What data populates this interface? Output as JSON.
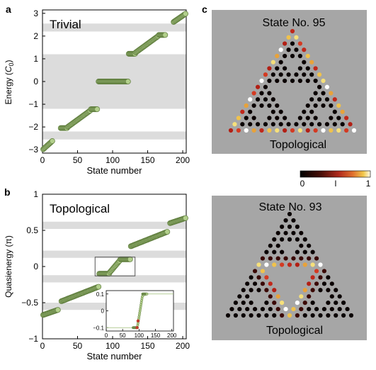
{
  "panel_labels": [
    "a",
    "b",
    "c"
  ],
  "colors": {
    "marker_fill": "#b3cf8c",
    "marker_stroke": "#5f7d3e",
    "band_gray": "#dcdcdc",
    "panel_c_bg": "#a6a6a6",
    "inset_line": "#9fbf78",
    "inset_highlight": "#c23b2a"
  },
  "chart_data": [
    {
      "id": "a",
      "type": "scatter",
      "annotation": "Trivial",
      "xlabel": "State number",
      "ylabel": "Energy (C0)",
      "xlim": [
        0,
        205
      ],
      "ylim": [
        -3.15,
        3.15
      ],
      "xticks": [
        0,
        50,
        100,
        150,
        200
      ],
      "yticks": [
        -3,
        -2,
        -1,
        0,
        1,
        2,
        3
      ],
      "gray_bands": [
        [
          2.2,
          2.55
        ],
        [
          -1.2,
          1.2
        ],
        [
          -2.55,
          -2.2
        ]
      ],
      "segments": [
        {
          "x": [
            1,
            14
          ],
          "y": [
            -2.98,
            -2.62
          ]
        },
        {
          "x": [
            26,
            35
          ],
          "y": [
            -2.05,
            -2.05
          ]
        },
        {
          "x": [
            36,
            68
          ],
          "y": [
            -2.0,
            -1.28
          ]
        },
        {
          "x": [
            69,
            78
          ],
          "y": [
            -1.22,
            -1.22
          ]
        },
        {
          "x": [
            80,
            122
          ],
          "y": [
            0.0,
            0.0
          ]
        },
        {
          "x": [
            123,
            132
          ],
          "y": [
            1.22,
            1.22
          ]
        },
        {
          "x": [
            133,
            165
          ],
          "y": [
            1.28,
            2.0
          ]
        },
        {
          "x": [
            166,
            175
          ],
          "y": [
            2.05,
            2.05
          ]
        },
        {
          "x": [
            187,
            204
          ],
          "y": [
            2.62,
            2.98
          ]
        }
      ]
    },
    {
      "id": "b",
      "type": "scatter",
      "annotation": "Topological",
      "xlabel": "State number",
      "ylabel": "Quasienergy (π)",
      "xlim": [
        0,
        205
      ],
      "ylim": [
        -1,
        1
      ],
      "xticks": [
        0,
        50,
        100,
        150,
        200
      ],
      "yticks": [
        -1,
        -0.5,
        0,
        0.5,
        1
      ],
      "ytick_labels": [
        "−1",
        "−0.5",
        "0",
        "0.5",
        "1"
      ],
      "gray_bands": [
        [
          0.52,
          0.62
        ],
        [
          0.12,
          0.22
        ],
        [
          -0.22,
          -0.12
        ],
        [
          -0.6,
          -0.5
        ]
      ],
      "segments": [
        {
          "x": [
            1,
            22
          ],
          "y": [
            -0.67,
            -0.6
          ]
        },
        {
          "x": [
            27,
            80
          ],
          "y": [
            -0.48,
            -0.28
          ]
        },
        {
          "x": [
            81,
            95
          ],
          "y": [
            -0.1,
            -0.1
          ]
        },
        {
          "x": [
            96,
            110
          ],
          "y": [
            -0.08,
            0.08
          ]
        },
        {
          "x": [
            111,
            125
          ],
          "y": [
            0.1,
            0.1
          ]
        },
        {
          "x": [
            126,
            178
          ],
          "y": [
            0.28,
            0.48
          ]
        },
        {
          "x": [
            182,
            204
          ],
          "y": [
            0.6,
            0.67
          ]
        }
      ],
      "zoom_box": {
        "x": [
          75,
          132
        ],
        "y": [
          -0.13,
          0.13
        ]
      },
      "inset": {
        "xlim": [
          0,
          205
        ],
        "ylim": [
          -0.12,
          0.12
        ],
        "xticks": [
          0,
          50,
          100,
          150,
          200
        ],
        "yticks": [
          -0.1,
          0,
          0.1
        ],
        "ytick_labels": [
          "−0.1",
          "0",
          "0.1"
        ]
      }
    }
  ],
  "panel_c": {
    "top": {
      "title": "State No. 95",
      "label": "Topological"
    },
    "bottom": {
      "title": "State No. 93",
      "label": "Topological"
    },
    "colorbar": {
      "min": "0",
      "mid": "l",
      "max": "1"
    }
  }
}
